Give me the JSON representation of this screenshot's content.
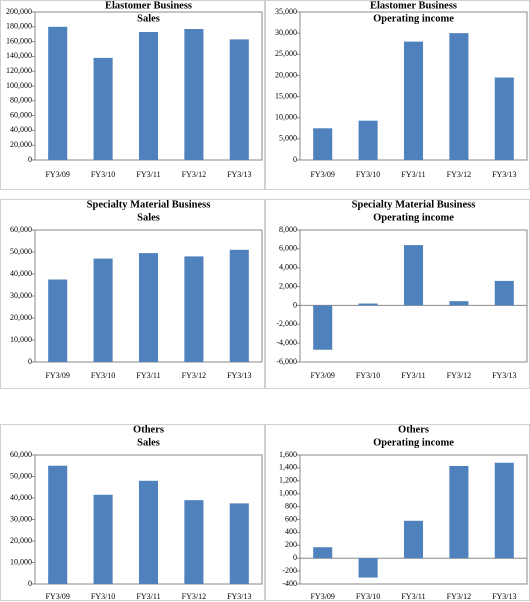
{
  "chart_data": [
    {
      "type": "bar",
      "title": [
        "Elastomer Business",
        "Sales"
      ],
      "categories": [
        "FY3/09",
        "FY3/10",
        "FY3/11",
        "FY3/12",
        "FY3/13"
      ],
      "values": [
        180000,
        138000,
        173000,
        177000,
        163000
      ],
      "color": "#4f81bd",
      "ylim": [
        0,
        200000
      ],
      "yticks": [
        0,
        {
          "value": 20000,
          "label": "20,000"
        },
        {
          "value": 40000,
          "label": "40,000"
        },
        {
          "value": 60000,
          "label": "60,000"
        },
        {
          "value": 80000,
          "label": "80,000"
        },
        {
          "value": 100000,
          "label": "100,000"
        },
        {
          "value": 120000,
          "label": "120,000"
        },
        {
          "value": 140000,
          "label": "140,000"
        },
        {
          "value": 160000,
          "label": "160,000"
        },
        {
          "value": 180000,
          "label": "180,000"
        },
        {
          "value": 200000,
          "label": "200,000"
        }
      ]
    },
    {
      "type": "bar",
      "title": [
        "Elastomer Business",
        "Operating income"
      ],
      "categories": [
        "FY3/09",
        "FY3/10",
        "FY3/11",
        "FY3/12",
        "FY3/13"
      ],
      "values": [
        7500,
        9300,
        28000,
        30000,
        19500
      ],
      "color": "#4f81bd",
      "ylim": [
        0,
        35000
      ],
      "yticks": [
        0,
        {
          "value": 5000,
          "label": "5,000"
        },
        {
          "value": 10000,
          "label": "10,000"
        },
        {
          "value": 15000,
          "label": "15,000"
        },
        {
          "value": 20000,
          "label": "20,000"
        },
        {
          "value": 25000,
          "label": "25,000"
        },
        {
          "value": 30000,
          "label": "30,000"
        },
        {
          "value": 35000,
          "label": "35,000"
        }
      ]
    },
    {
      "type": "bar",
      "title": [
        "Specialty Material Business",
        "Sales"
      ],
      "categories": [
        "FY3/09",
        "FY3/10",
        "FY3/11",
        "FY3/12",
        "FY3/13"
      ],
      "values": [
        37500,
        47000,
        49500,
        48000,
        51000
      ],
      "color": "#4f81bd",
      "ylim": [
        0,
        60000
      ],
      "yticks": [
        0,
        {
          "value": 10000,
          "label": "10,000"
        },
        {
          "value": 20000,
          "label": "20,000"
        },
        {
          "value": 30000,
          "label": "30,000"
        },
        {
          "value": 40000,
          "label": "40,000"
        },
        {
          "value": 50000,
          "label": "50,000"
        },
        {
          "value": 60000,
          "label": "60,000"
        }
      ]
    },
    {
      "type": "bar",
      "title": [
        "Specialty Material Business",
        "Operating income"
      ],
      "categories": [
        "FY3/09",
        "FY3/10",
        "FY3/11",
        "FY3/12",
        "FY3/13"
      ],
      "values": [
        -4700,
        200,
        6400,
        450,
        2600
      ],
      "color": "#4f81bd",
      "ylim": [
        -6000,
        8000
      ],
      "negative_tick_color": "#ff0000",
      "yticks": [
        {
          "value": -6000,
          "label": "-6,000"
        },
        {
          "value": -4000,
          "label": "-4,000"
        },
        {
          "value": -2000,
          "label": "-2,000"
        },
        0,
        {
          "value": 2000,
          "label": "2,000"
        },
        {
          "value": 4000,
          "label": "4,000"
        },
        {
          "value": 6000,
          "label": "6,000"
        },
        {
          "value": 8000,
          "label": "8,000"
        }
      ]
    },
    {
      "type": "bar",
      "title": [
        "Others",
        "Sales"
      ],
      "categories": [
        "FY3/09",
        "FY3/10",
        "FY3/11",
        "FY3/12",
        "FY3/13"
      ],
      "values": [
        55000,
        41500,
        48000,
        39000,
        37500
      ],
      "color": "#4f81bd",
      "ylim": [
        0,
        60000
      ],
      "yticks": [
        0,
        {
          "value": 10000,
          "label": "10,000"
        },
        {
          "value": 20000,
          "label": "20,000"
        },
        {
          "value": 30000,
          "label": "30,000"
        },
        {
          "value": 40000,
          "label": "40,000"
        },
        {
          "value": 50000,
          "label": "50,000"
        },
        {
          "value": 60000,
          "label": "60,000"
        }
      ]
    },
    {
      "type": "bar",
      "title": [
        "Others",
        "Operating income"
      ],
      "categories": [
        "FY3/09",
        "FY3/10",
        "FY3/11",
        "FY3/12",
        "FY3/13"
      ],
      "values": [
        170,
        -300,
        580,
        1430,
        1480
      ],
      "color": "#4f81bd",
      "ylim": [
        -400,
        1600
      ],
      "yticks": [
        -400,
        -200,
        0,
        200,
        400,
        600,
        800,
        {
          "value": 1000,
          "label": "1,000"
        },
        {
          "value": 1200,
          "label": "1,200"
        },
        {
          "value": 1400,
          "label": "1,400"
        },
        {
          "value": 1600,
          "label": "1,600"
        }
      ]
    }
  ]
}
